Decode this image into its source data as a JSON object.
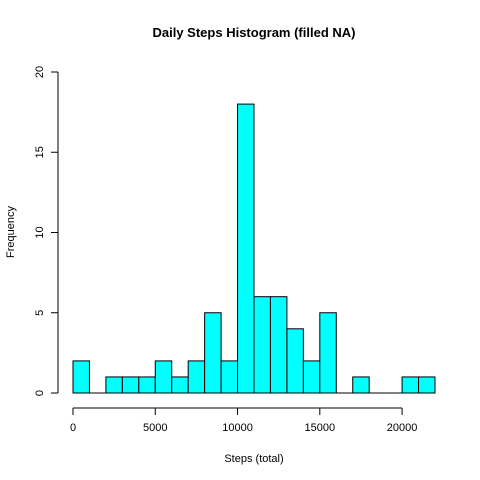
{
  "chart_data": {
    "type": "bar",
    "title": "Daily Steps Histogram (filled NA)",
    "xlabel": "Steps (total)",
    "ylabel": "Frequency",
    "bin_width": 1000,
    "bins": [
      {
        "start": 0,
        "end": 1000,
        "count": 2
      },
      {
        "start": 1000,
        "end": 2000,
        "count": 0
      },
      {
        "start": 2000,
        "end": 3000,
        "count": 1
      },
      {
        "start": 3000,
        "end": 4000,
        "count": 1
      },
      {
        "start": 4000,
        "end": 5000,
        "count": 1
      },
      {
        "start": 5000,
        "end": 6000,
        "count": 2
      },
      {
        "start": 6000,
        "end": 7000,
        "count": 1
      },
      {
        "start": 7000,
        "end": 8000,
        "count": 2
      },
      {
        "start": 8000,
        "end": 9000,
        "count": 5
      },
      {
        "start": 9000,
        "end": 10000,
        "count": 2
      },
      {
        "start": 10000,
        "end": 11000,
        "count": 18
      },
      {
        "start": 11000,
        "end": 12000,
        "count": 6
      },
      {
        "start": 12000,
        "end": 13000,
        "count": 6
      },
      {
        "start": 13000,
        "end": 14000,
        "count": 4
      },
      {
        "start": 14000,
        "end": 15000,
        "count": 2
      },
      {
        "start": 15000,
        "end": 16000,
        "count": 5
      },
      {
        "start": 16000,
        "end": 17000,
        "count": 0
      },
      {
        "start": 17000,
        "end": 18000,
        "count": 1
      },
      {
        "start": 18000,
        "end": 19000,
        "count": 0
      },
      {
        "start": 19000,
        "end": 20000,
        "count": 0
      },
      {
        "start": 20000,
        "end": 21000,
        "count": 1
      },
      {
        "start": 21000,
        "end": 22000,
        "count": 1
      }
    ],
    "xlim": [
      0,
      22000
    ],
    "ylim": [
      0,
      20
    ],
    "x_ticks": [
      0,
      5000,
      10000,
      15000,
      20000
    ],
    "y_ticks": [
      0,
      5,
      10,
      15,
      20
    ],
    "bar_color": "#00FFFF",
    "bar_border_color": "#000000",
    "grid": false,
    "legend": "none"
  }
}
